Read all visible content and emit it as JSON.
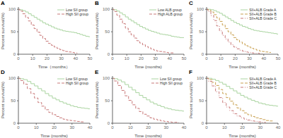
{
  "chart_data": [
    {
      "type": "step",
      "title": "A",
      "xlabel": "Time（months）",
      "ylabel": "Percent survival(%)",
      "xlim": [
        0,
        50
      ],
      "ylim": [
        0,
        105
      ],
      "xticks": [
        0,
        10,
        20,
        30,
        40,
        50
      ],
      "yticks": [
        0,
        50,
        100
      ],
      "legend": "upper right",
      "series": [
        {
          "name": "Low SII group",
          "color": "#aad4a0",
          "line_style": "solid",
          "x": [
            0,
            1,
            3,
            5,
            7,
            9,
            11,
            13,
            15,
            17,
            19,
            21,
            23,
            25,
            27,
            29,
            31,
            33,
            35,
            37,
            39,
            41,
            43,
            45,
            47,
            49,
            50
          ],
          "values": [
            100,
            99,
            97,
            94,
            90,
            86,
            82,
            78,
            74,
            70,
            67,
            64,
            61,
            58,
            56,
            54,
            52,
            51,
            50,
            49,
            48,
            46,
            44,
            42,
            40,
            39,
            39
          ]
        },
        {
          "name": "High SII group",
          "color": "#c87878",
          "line_style": "dashed",
          "x": [
            0,
            1,
            3,
            5,
            7,
            9,
            11,
            13,
            15,
            17,
            19,
            21,
            23,
            25,
            27,
            29,
            31,
            33,
            35,
            37,
            39,
            41
          ],
          "values": [
            100,
            96,
            90,
            82,
            74,
            65,
            57,
            49,
            42,
            35,
            29,
            24,
            20,
            16,
            13,
            10,
            8,
            6,
            5,
            4,
            3,
            2
          ]
        }
      ]
    },
    {
      "type": "step",
      "title": "B",
      "xlabel": "Time (months)",
      "ylabel": "Percent survival(%)",
      "xlim": [
        0,
        50
      ],
      "ylim": [
        0,
        105
      ],
      "xticks": [
        0,
        10,
        20,
        30,
        40,
        50
      ],
      "yticks": [
        0,
        50,
        100
      ],
      "legend": "upper right",
      "series": [
        {
          "name": "Low ALB group",
          "color": "#aad4a0",
          "line_style": "solid",
          "x": [
            0,
            1,
            3,
            5,
            7,
            9,
            11,
            13,
            15,
            17,
            19,
            21,
            23,
            25,
            27,
            29,
            31,
            33,
            35,
            37,
            39,
            41,
            43,
            45,
            47,
            49,
            50
          ],
          "values": [
            100,
            99,
            96,
            92,
            88,
            83,
            78,
            74,
            70,
            66,
            62,
            59,
            56,
            53,
            51,
            49,
            47,
            45,
            44,
            43,
            42,
            40,
            39,
            38,
            37,
            37,
            37
          ]
        },
        {
          "name": "High ALB group",
          "color": "#c87878",
          "line_style": "dashed",
          "x": [
            0,
            1,
            3,
            5,
            7,
            9,
            11,
            13,
            15,
            17,
            19,
            21,
            23,
            25,
            27,
            29,
            31,
            33,
            35,
            37,
            39,
            41,
            43
          ],
          "values": [
            100,
            95,
            87,
            78,
            68,
            58,
            50,
            43,
            36,
            30,
            25,
            21,
            17,
            14,
            11,
            9,
            7,
            6,
            5,
            4,
            3,
            3,
            3
          ]
        }
      ]
    },
    {
      "type": "step",
      "title": "C",
      "xlabel": "Time (months)",
      "ylabel": "Percent survival(%)",
      "xlim": [
        0,
        50
      ],
      "ylim": [
        0,
        105
      ],
      "xticks": [
        0,
        10,
        20,
        30,
        40,
        50
      ],
      "yticks": [
        0,
        50,
        100
      ],
      "legend": "upper right",
      "series": [
        {
          "name": "SII+ALB Grade A",
          "color": "#aad4a0",
          "line_style": "solid",
          "x": [
            0,
            1,
            3,
            5,
            7,
            9,
            11,
            13,
            15,
            17,
            19,
            21,
            23,
            25,
            27,
            29,
            31,
            33,
            35,
            37,
            39,
            41,
            43,
            45,
            47,
            49,
            50
          ],
          "values": [
            100,
            100,
            99,
            97,
            94,
            91,
            87,
            83,
            79,
            75,
            71,
            68,
            65,
            62,
            60,
            57,
            55,
            53,
            52,
            51,
            50,
            49,
            48,
            47,
            46,
            45,
            45
          ]
        },
        {
          "name": "SII+ALB Grade B",
          "color": "#c8a050",
          "line_style": "dashed",
          "x": [
            0,
            1,
            3,
            5,
            7,
            9,
            11,
            13,
            15,
            17,
            19,
            21,
            23,
            25,
            27,
            29,
            31,
            33,
            35,
            37,
            39,
            41,
            43,
            45
          ],
          "values": [
            100,
            98,
            94,
            88,
            81,
            73,
            65,
            57,
            50,
            43,
            37,
            32,
            27,
            23,
            19,
            16,
            13,
            11,
            9,
            7,
            6,
            5,
            4,
            4
          ]
        },
        {
          "name": "SII+ALB Grade C",
          "color": "#c87878",
          "line_style": "dashdot",
          "x": [
            0,
            1,
            3,
            5,
            7,
            9,
            11,
            13,
            15,
            17,
            19,
            21,
            23,
            25,
            27,
            29,
            31,
            33,
            35,
            37,
            39
          ],
          "values": [
            100,
            95,
            86,
            75,
            63,
            52,
            42,
            34,
            27,
            21,
            16,
            12,
            9,
            7,
            5,
            4,
            3,
            2,
            2,
            1,
            1
          ]
        }
      ]
    },
    {
      "type": "step",
      "title": "D",
      "xlabel": "Time (months)",
      "ylabel": "Percent survival(%)",
      "xlim": [
        0,
        40
      ],
      "ylim": [
        0,
        105
      ],
      "xticks": [
        0,
        10,
        20,
        30,
        40
      ],
      "yticks": [
        0,
        50,
        100
      ],
      "legend": "upper right",
      "series": [
        {
          "name": "Low SII group",
          "color": "#aad4a0",
          "line_style": "solid",
          "x": [
            0,
            1,
            3,
            5,
            7,
            9,
            11,
            13,
            15,
            17,
            19,
            21,
            23,
            25,
            27,
            29,
            31,
            33,
            35,
            37,
            39,
            40
          ],
          "values": [
            100,
            99,
            97,
            93,
            88,
            83,
            77,
            72,
            66,
            61,
            56,
            52,
            48,
            45,
            42,
            39,
            37,
            35,
            34,
            33,
            32,
            32
          ]
        },
        {
          "name": "High SII group",
          "color": "#c87878",
          "line_style": "dashed",
          "x": [
            0,
            1,
            3,
            5,
            7,
            9,
            11,
            13,
            15,
            17,
            19,
            21,
            23,
            25,
            27,
            29,
            31,
            33,
            35,
            37
          ],
          "values": [
            100,
            95,
            87,
            77,
            66,
            56,
            46,
            38,
            30,
            24,
            19,
            15,
            12,
            9,
            7,
            6,
            5,
            4,
            3,
            3
          ]
        }
      ]
    },
    {
      "type": "step",
      "title": "E",
      "xlabel": "Time (months)",
      "ylabel": "Percent survival(%)",
      "xlim": [
        0,
        40
      ],
      "ylim": [
        0,
        105
      ],
      "xticks": [
        0,
        10,
        20,
        30,
        40
      ],
      "yticks": [
        0,
        50,
        100
      ],
      "legend": "upper right",
      "series": [
        {
          "name": "Low SII group",
          "color": "#aad4a0",
          "line_style": "solid",
          "x": [
            0,
            1,
            3,
            5,
            7,
            9,
            11,
            13,
            15,
            17,
            19,
            21,
            23,
            25,
            27,
            29,
            31,
            33,
            35,
            37,
            39,
            40
          ],
          "values": [
            100,
            99,
            96,
            92,
            86,
            80,
            74,
            68,
            62,
            57,
            52,
            47,
            43,
            40,
            37,
            34,
            32,
            30,
            29,
            28,
            27,
            27
          ]
        },
        {
          "name": "High SII group",
          "color": "#c87878",
          "line_style": "dashed",
          "x": [
            0,
            1,
            3,
            5,
            7,
            9,
            11,
            13,
            15,
            17,
            19,
            21,
            23,
            25,
            27,
            29,
            31,
            33,
            35,
            37
          ],
          "values": [
            100,
            94,
            84,
            73,
            61,
            51,
            41,
            33,
            26,
            20,
            16,
            12,
            9,
            7,
            5,
            4,
            3,
            2,
            2,
            1
          ]
        }
      ]
    },
    {
      "type": "step",
      "title": "F",
      "xlabel": "Time (months)",
      "ylabel": "Percent survival(%)",
      "xlim": [
        0,
        40
      ],
      "ylim": [
        0,
        105
      ],
      "xticks": [
        0,
        10,
        20,
        30,
        40
      ],
      "yticks": [
        0,
        50,
        100
      ],
      "legend": "upper right",
      "series": [
        {
          "name": "SII+ALB Grade A",
          "color": "#aad4a0",
          "line_style": "solid",
          "x": [
            0,
            1,
            3,
            5,
            7,
            9,
            11,
            13,
            15,
            17,
            19,
            21,
            23,
            25,
            27,
            29,
            31,
            33,
            35,
            37,
            39,
            40
          ],
          "values": [
            100,
            100,
            98,
            95,
            91,
            87,
            82,
            77,
            72,
            67,
            62,
            58,
            54,
            51,
            48,
            45,
            43,
            41,
            40,
            39,
            38,
            38
          ]
        },
        {
          "name": "SII+ALB Grade B",
          "color": "#c8a050",
          "line_style": "dashed",
          "x": [
            0,
            1,
            3,
            5,
            7,
            9,
            11,
            13,
            15,
            17,
            19,
            21,
            23,
            25,
            27,
            29,
            31,
            33,
            35,
            37
          ],
          "values": [
            100,
            97,
            91,
            84,
            75,
            66,
            57,
            49,
            41,
            34,
            28,
            23,
            19,
            15,
            12,
            10,
            8,
            6,
            5,
            4
          ]
        },
        {
          "name": "SII+ALB Grade C",
          "color": "#c87878",
          "line_style": "dashdot",
          "x": [
            0,
            1,
            3,
            5,
            7,
            9,
            11,
            13,
            15,
            17,
            19,
            21,
            23,
            25,
            27,
            29,
            31,
            33
          ],
          "values": [
            100,
            93,
            83,
            70,
            57,
            46,
            36,
            28,
            21,
            16,
            12,
            9,
            7,
            5,
            4,
            3,
            2,
            1
          ]
        }
      ]
    }
  ]
}
